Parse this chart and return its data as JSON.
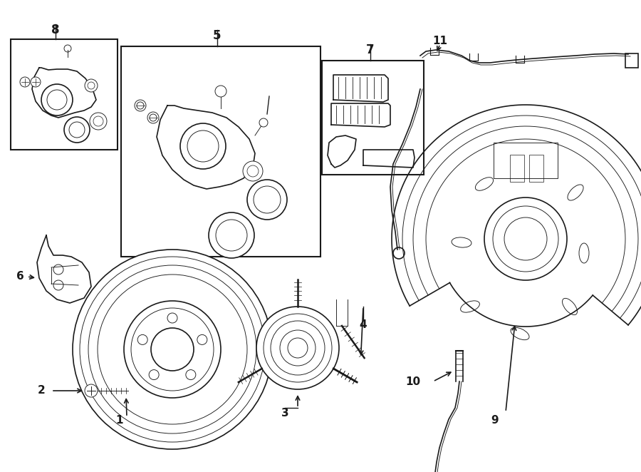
{
  "background_color": "#ffffff",
  "line_color": "#1a1a1a",
  "label_color": "#000000",
  "figsize": [
    9.0,
    6.62
  ],
  "dpi": 100,
  "xlim": [
    0,
    900
  ],
  "ylim": [
    0,
    662
  ]
}
